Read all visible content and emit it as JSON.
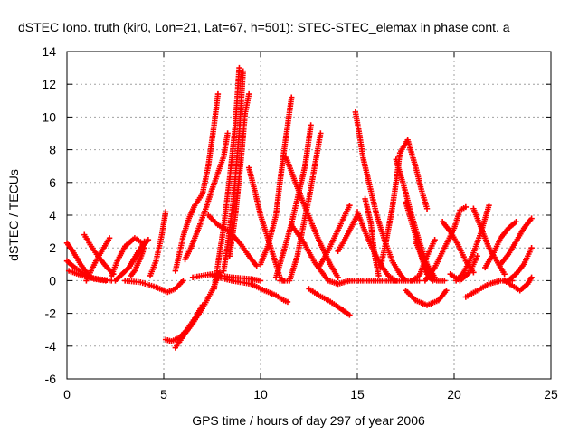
{
  "chart_data": {
    "type": "scatter",
    "title": "dSTEC Iono. truth (kir0, Lon=21, Lat=67, h=501): STEC-STEC_elemax in phase cont. a",
    "xlabel": "GPS time / hours of day 297 of year 2006",
    "ylabel": "dSTEC  / TECUs",
    "xlim": [
      0,
      25
    ],
    "ylim": [
      -6,
      14
    ],
    "x_ticks": [
      "0",
      "5",
      "10",
      "15",
      "20",
      "25"
    ],
    "y_ticks": [
      "-6",
      "-4",
      "-2",
      "0",
      "2",
      "4",
      "6",
      "8",
      "10",
      "12",
      "14"
    ],
    "grid": true,
    "legend": "none",
    "marker": "+",
    "color": "#ff0000",
    "series": [
      {
        "x": [
          0.0,
          0.3,
          0.7,
          1.2
        ],
        "y": [
          2.3,
          1.8,
          1.0,
          0.2
        ]
      },
      {
        "x": [
          0.0,
          0.4,
          0.9,
          1.4,
          2.0
        ],
        "y": [
          1.2,
          0.8,
          0.4,
          0.1,
          0.0
        ]
      },
      {
        "x": [
          0.1,
          0.8,
          1.6,
          2.3
        ],
        "y": [
          0.6,
          0.3,
          0.1,
          0.0
        ]
      },
      {
        "x": [
          0.9,
          1.2,
          1.6,
          2.0,
          2.4
        ],
        "y": [
          2.8,
          2.2,
          1.5,
          0.9,
          0.4
        ]
      },
      {
        "x": [
          1.0,
          1.5,
          2.2
        ],
        "y": [
          0.0,
          1.2,
          2.6
        ]
      },
      {
        "x": [
          2.3,
          2.6,
          3.0,
          3.5,
          3.9
        ],
        "y": [
          0.3,
          1.2,
          2.1,
          2.6,
          2.3
        ]
      },
      {
        "x": [
          3.2,
          3.6,
          4.0
        ],
        "y": [
          0.8,
          1.5,
          2.4
        ]
      },
      {
        "x": [
          2.5,
          3.2,
          3.7,
          4.2
        ],
        "y": [
          0.0,
          0.8,
          1.8,
          2.5
        ]
      },
      {
        "x": [
          3.3,
          3.5,
          3.8,
          4.0
        ],
        "y": [
          0.3,
          0.6,
          1.4,
          2.0
        ]
      },
      {
        "x": [
          4.3,
          4.6,
          4.9,
          5.1
        ],
        "y": [
          0.3,
          1.2,
          2.8,
          4.2
        ]
      },
      {
        "x": [
          3.0,
          3.8,
          4.6,
          5.2,
          5.6,
          6.0
        ],
        "y": [
          0.0,
          -0.1,
          -0.4,
          -0.7,
          -0.5,
          0.0
        ]
      },
      {
        "x": [
          5.1,
          5.4,
          5.8,
          6.2,
          6.6,
          7.0
        ],
        "y": [
          -3.6,
          -3.7,
          -3.5,
          -3.0,
          -2.3,
          -1.5
        ]
      },
      {
        "x": [
          5.6,
          6.0,
          6.5,
          7.0,
          7.5,
          7.9
        ],
        "y": [
          -4.1,
          -3.4,
          -2.6,
          -1.7,
          -0.6,
          0.5
        ]
      },
      {
        "x": [
          5.6,
          5.8,
          6.0,
          6.3,
          6.6,
          7.0,
          7.3,
          7.6,
          7.8
        ],
        "y": [
          0.6,
          1.6,
          2.7,
          3.8,
          4.6,
          5.3,
          7.0,
          9.5,
          11.4
        ]
      },
      {
        "x": [
          6.1,
          6.4,
          6.8,
          7.2,
          7.5,
          7.8,
          8.1,
          8.3
        ],
        "y": [
          1.3,
          2.0,
          3.2,
          4.5,
          5.6,
          6.6,
          7.6,
          9.0
        ]
      },
      {
        "x": [
          7.6,
          7.8,
          8.1,
          8.4,
          8.7,
          8.9
        ],
        "y": [
          -0.5,
          1.0,
          3.3,
          6.2,
          9.5,
          13.0
        ]
      },
      {
        "x": [
          8.1,
          8.3,
          8.6,
          8.9,
          9.1
        ],
        "y": [
          0.6,
          2.2,
          5.0,
          9.0,
          12.8
        ]
      },
      {
        "x": [
          8.4,
          8.7,
          9.0,
          9.2,
          9.4
        ],
        "y": [
          1.5,
          4.0,
          7.5,
          10.2,
          11.4
        ]
      },
      {
        "x": [
          7.3,
          7.8,
          8.4,
          9.0,
          9.4,
          9.8
        ],
        "y": [
          4.0,
          3.4,
          3.0,
          2.2,
          1.5,
          0.9
        ]
      },
      {
        "x": [
          7.5,
          8.5,
          9.5,
          10.2,
          10.8,
          11.2,
          11.4
        ],
        "y": [
          0.3,
          0.0,
          -0.2,
          -0.6,
          -0.9,
          -1.2,
          -1.3
        ]
      },
      {
        "x": [
          6.5,
          7.5,
          8.5,
          9.5,
          10.0
        ],
        "y": [
          0.2,
          0.4,
          0.2,
          0.1,
          0.0
        ]
      },
      {
        "x": [
          9.4,
          9.7,
          10.0,
          10.4,
          10.8,
          11.0,
          11.2
        ],
        "y": [
          6.9,
          5.5,
          4.0,
          2.5,
          1.0,
          0.2,
          0.0
        ]
      },
      {
        "x": [
          10.0,
          10.4,
          10.8,
          11.0,
          11.2,
          11.4,
          11.6
        ],
        "y": [
          1.0,
          2.2,
          4.0,
          6.0,
          7.8,
          9.5,
          11.2
        ]
      },
      {
        "x": [
          10.8,
          11.2,
          11.6,
          12.0,
          12.3,
          12.6
        ],
        "y": [
          0.2,
          1.8,
          3.5,
          5.5,
          7.0,
          9.5
        ]
      },
      {
        "x": [
          11.0,
          11.5,
          11.9,
          12.2,
          12.5,
          12.8,
          13.1
        ],
        "y": [
          0.0,
          0.0,
          1.5,
          3.3,
          5.0,
          7.0,
          9.0
        ]
      },
      {
        "x": [
          11.3,
          11.8,
          12.4,
          13.0,
          13.6,
          14.0
        ],
        "y": [
          7.6,
          6.0,
          4.2,
          2.5,
          1.0,
          0.2
        ]
      },
      {
        "x": [
          11.6,
          12.2,
          12.8,
          13.5,
          14.0,
          14.6
        ],
        "y": [
          3.4,
          2.4,
          1.1,
          0.0,
          -0.2,
          0.0
        ]
      },
      {
        "x": [
          12.5,
          13.0,
          13.5,
          14.0,
          14.6
        ],
        "y": [
          -0.5,
          -0.9,
          -1.2,
          -1.6,
          -2.1
        ]
      },
      {
        "x": [
          13.0,
          13.4,
          13.8,
          14.2,
          14.6
        ],
        "y": [
          0.8,
          1.6,
          2.6,
          3.6,
          4.6
        ]
      },
      {
        "x": [
          14.0,
          14.3,
          14.7,
          15.0
        ],
        "y": [
          1.8,
          2.4,
          3.3,
          4.0
        ]
      },
      {
        "x": [
          14.9,
          15.1,
          15.3,
          15.6,
          16.0,
          16.4,
          16.8,
          17.2,
          17.5
        ],
        "y": [
          10.3,
          9.0,
          7.5,
          6.0,
          4.0,
          2.5,
          1.2,
          0.4,
          0.0
        ]
      },
      {
        "x": [
          15.0,
          15.4,
          15.8,
          16.2,
          16.6,
          17.0
        ],
        "y": [
          4.2,
          3.0,
          1.9,
          1.0,
          0.3,
          0.0
        ]
      },
      {
        "x": [
          15.4,
          15.7,
          15.9,
          16.1
        ],
        "y": [
          5.0,
          3.5,
          1.5,
          0.3
        ]
      },
      {
        "x": [
          14.5,
          15.5,
          16.5,
          17.5,
          18.2
        ],
        "y": [
          0.0,
          0.0,
          0.0,
          0.0,
          0.0
        ]
      },
      {
        "x": [
          16.2,
          16.5,
          16.8,
          17.0,
          17.2,
          17.6,
          18.0,
          18.3,
          18.6
        ],
        "y": [
          0.8,
          2.5,
          4.4,
          6.0,
          7.8,
          8.6,
          7.0,
          5.6,
          4.4
        ]
      },
      {
        "x": [
          17.0,
          17.4,
          17.8,
          18.2,
          18.6,
          19.0
        ],
        "y": [
          7.4,
          5.8,
          4.0,
          2.4,
          1.0,
          0.2
        ]
      },
      {
        "x": [
          17.5,
          17.9,
          18.3,
          18.6,
          18.9
        ],
        "y": [
          4.8,
          3.2,
          1.5,
          0.4,
          0.0
        ]
      },
      {
        "x": [
          18.0,
          18.4,
          18.7,
          19.1,
          19.5
        ],
        "y": [
          2.4,
          1.3,
          0.2,
          0.0,
          0.0
        ]
      },
      {
        "x": [
          17.8,
          18.2,
          18.6,
          19.0
        ],
        "y": [
          0.0,
          0.3,
          1.5,
          2.5
        ]
      },
      {
        "x": [
          17.5,
          18.0,
          18.6,
          19.2,
          19.6
        ],
        "y": [
          -0.6,
          -1.2,
          -1.5,
          -1.2,
          -0.6
        ]
      },
      {
        "x": [
          18.5,
          19.0,
          19.5,
          20.0,
          20.3,
          20.6
        ],
        "y": [
          0.0,
          0.8,
          2.0,
          3.2,
          4.3,
          4.5
        ]
      },
      {
        "x": [
          19.4,
          19.8,
          20.2,
          20.6,
          21.0
        ],
        "y": [
          3.6,
          3.0,
          2.2,
          1.2,
          0.5
        ]
      },
      {
        "x": [
          19.8,
          20.3,
          20.8,
          21.2
        ],
        "y": [
          0.4,
          0.0,
          0.5,
          1.5
        ]
      },
      {
        "x": [
          20.1,
          20.5,
          21.0,
          21.4,
          21.8
        ],
        "y": [
          0.0,
          0.5,
          1.7,
          3.0,
          4.6
        ]
      },
      {
        "x": [
          21.0,
          21.4,
          21.8,
          22.2,
          22.6
        ],
        "y": [
          4.4,
          3.2,
          2.0,
          1.2,
          0.4
        ]
      },
      {
        "x": [
          20.6,
          21.2,
          21.8,
          22.4,
          23.0
        ],
        "y": [
          -1.0,
          -0.6,
          -0.2,
          0.0,
          0.0
        ]
      },
      {
        "x": [
          21.6,
          22.0,
          22.4,
          22.8,
          23.2
        ],
        "y": [
          0.8,
          1.6,
          2.6,
          3.2,
          3.6
        ]
      },
      {
        "x": [
          22.4,
          22.8,
          23.2,
          23.6,
          24.0
        ],
        "y": [
          1.0,
          1.6,
          2.4,
          3.2,
          3.8
        ]
      },
      {
        "x": [
          22.8,
          23.2,
          23.6,
          24.0
        ],
        "y": [
          0.0,
          0.4,
          1.0,
          2.0
        ]
      },
      {
        "x": [
          22.6,
          23.0,
          23.4,
          23.8,
          24.0
        ],
        "y": [
          0.0,
          -0.3,
          -0.6,
          -0.2,
          0.2
        ]
      }
    ]
  }
}
